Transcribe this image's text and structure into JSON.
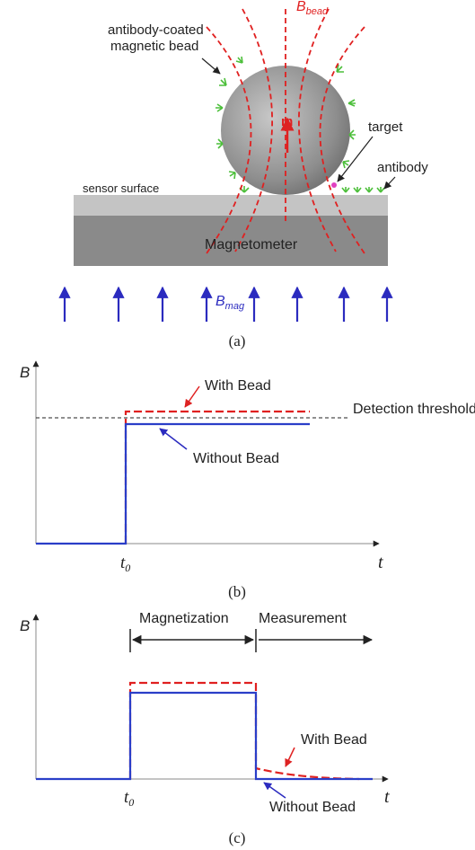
{
  "panel_a": {
    "bead_label_line1": "antibody-coated",
    "bead_label_line2": "magnetic bead",
    "field_bead": {
      "symbol": "B",
      "subscript": "bead"
    },
    "moment": "m",
    "target": "target",
    "antibody": "antibody",
    "surface": "sensor surface",
    "sensor": "Magnetometer",
    "field_mag": {
      "symbol": "B",
      "subscript": "mag"
    },
    "caption": "(a)"
  },
  "panel_b": {
    "y_axis": "B",
    "with_bead": "With Bead",
    "threshold": "Detection threshold",
    "without_bead": "Without Bead",
    "t0": {
      "symbol": "t",
      "subscript": "0"
    },
    "x_axis": "t",
    "caption": "(b)"
  },
  "panel_c": {
    "y_axis": "B",
    "phase1": "Magnetization",
    "phase2": "Measurement",
    "with_bead": "With Bead",
    "without_bead": "Without Bead",
    "t0": {
      "symbol": "t",
      "subscript": "0"
    },
    "x_axis": "t",
    "caption": "(c)"
  }
}
